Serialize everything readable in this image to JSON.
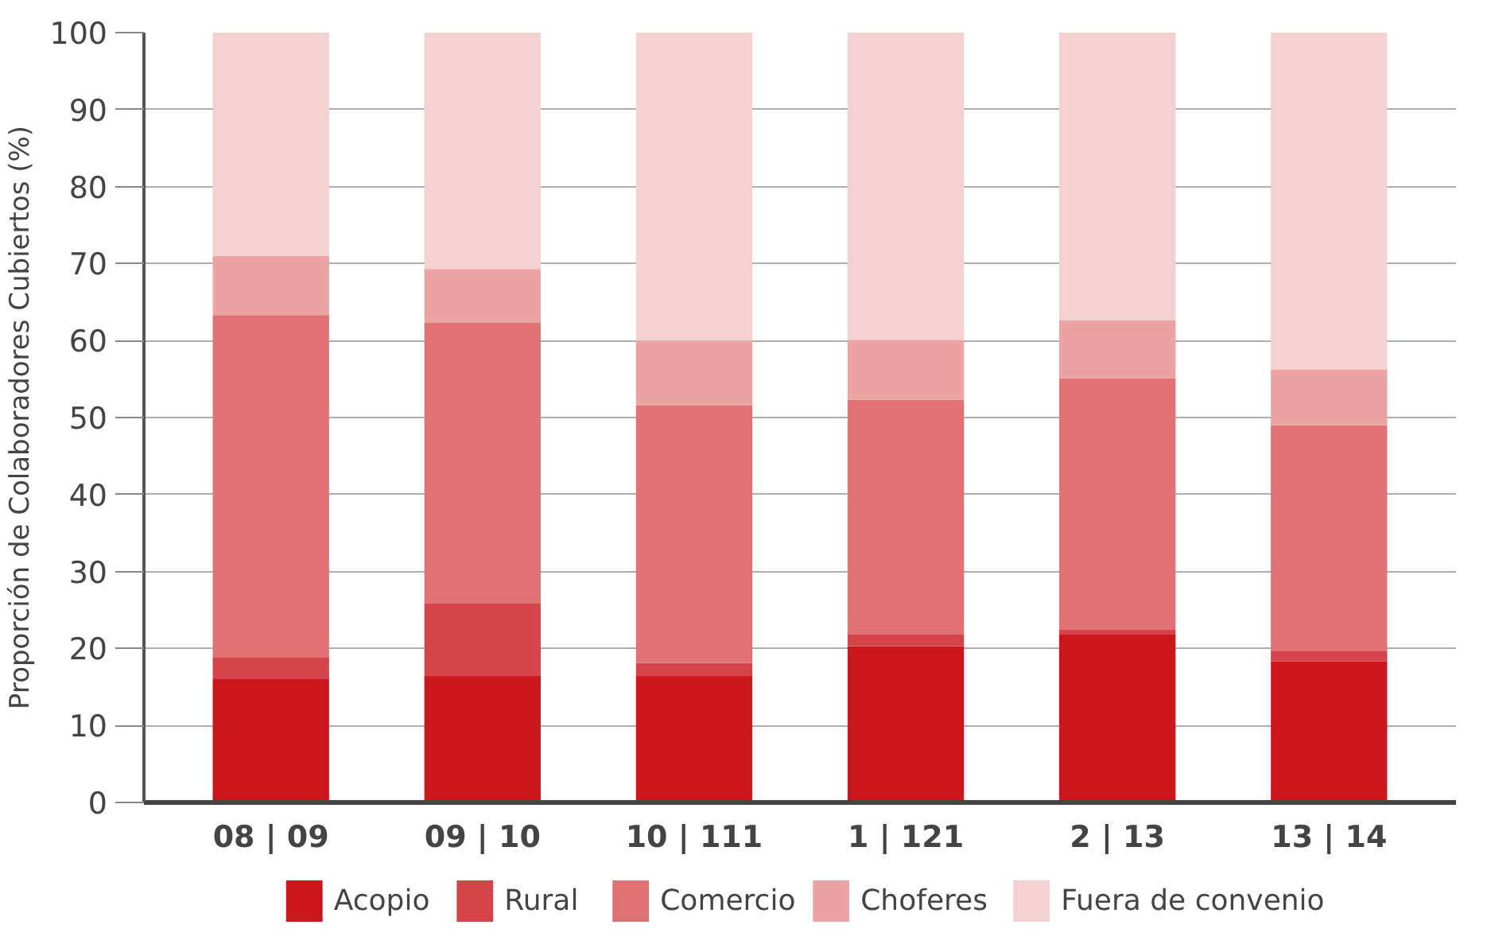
{
  "chart_data": {
    "type": "bar",
    "stacked": true,
    "ylabel": "Proporción de Colaboradores Cubiertos (%)",
    "categories": [
      "08 | 09",
      "09 | 10",
      "10 | 111",
      "1 | 121",
      "2 | 13",
      "13 | 14"
    ],
    "series": [
      {
        "name": "Acopio",
        "color": "#c9171b",
        "values": [
          16.0,
          16.5,
          16.5,
          20.3,
          21.8,
          18.3
        ]
      },
      {
        "name": "Rural",
        "color": "#d5444a",
        "values": [
          2.8,
          9.4,
          1.6,
          1.5,
          0.7,
          1.4
        ]
      },
      {
        "name": "Comercio",
        "color": "#e07275",
        "values": [
          44.5,
          36.4,
          33.5,
          30.5,
          32.6,
          29.3
        ]
      },
      {
        "name": "Choferes",
        "color": "#eba3a3",
        "values": [
          7.7,
          7.0,
          8.4,
          7.8,
          7.5,
          7.2
        ]
      },
      {
        "name": "Fuera de convenio",
        "color": "#f4d1d1",
        "values": [
          29.0,
          30.7,
          40.0,
          39.9,
          37.4,
          43.8
        ]
      }
    ],
    "ylim": [
      0,
      100
    ],
    "yticks": [
      0,
      10,
      20,
      30,
      40,
      50,
      60,
      70,
      80,
      90,
      100
    ],
    "grid": "y",
    "legend": "bottom"
  }
}
